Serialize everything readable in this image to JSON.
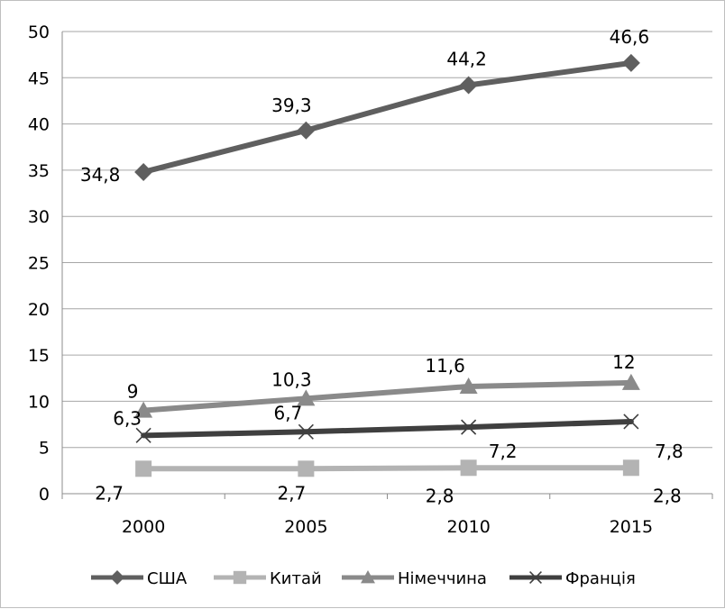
{
  "chart_data": {
    "type": "line",
    "x": [
      "2000",
      "2005",
      "2010",
      "2015"
    ],
    "ylim": [
      0,
      50
    ],
    "yticks": [
      0,
      5,
      10,
      15,
      20,
      25,
      30,
      35,
      40,
      45,
      50
    ],
    "grid": true,
    "legend_position": "bottom",
    "series": [
      {
        "name": "США",
        "values": [
          34.8,
          39.3,
          44.2,
          46.6
        ],
        "labels": [
          "34,8",
          "39,3",
          "44,2",
          "46,6"
        ],
        "marker": "diamond",
        "color": "#5f5f5f"
      },
      {
        "name": "Китай",
        "values": [
          2.7,
          2.7,
          2.8,
          2.8
        ],
        "labels": [
          "2,7",
          "2,7",
          "2,8",
          "2,8"
        ],
        "marker": "square",
        "color": "#b3b3b3"
      },
      {
        "name": "Німеччина",
        "values": [
          9,
          10.3,
          11.6,
          12
        ],
        "labels": [
          "9",
          "10,3",
          "11,6",
          "12"
        ],
        "marker": "triangle",
        "color": "#8a8a8a"
      },
      {
        "name": "Франція",
        "values": [
          6.3,
          6.7,
          7.2,
          7.8
        ],
        "labels": [
          "6,3",
          "6,7",
          "7,2",
          "7,8"
        ],
        "marker": "x",
        "color": "#3f3f3f"
      }
    ]
  }
}
